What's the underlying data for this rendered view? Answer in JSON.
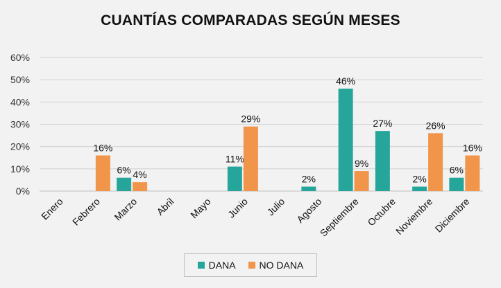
{
  "chart_data": {
    "type": "bar",
    "title": "CUANTÍAS COMPARADAS SEGÚN MESES",
    "categories": [
      "Enero",
      "Febrero",
      "Marzo",
      "Abril",
      "Mayo",
      "Junio",
      "Julio",
      "Agosto",
      "Septiembre",
      "Octubre",
      "Noviembre",
      "Diciembre"
    ],
    "series": [
      {
        "name": "DANA",
        "color": "#26a69a",
        "values": [
          0,
          0,
          6,
          0,
          0,
          11,
          0,
          2,
          46,
          27,
          2,
          6
        ],
        "labels": [
          "",
          "",
          "6%",
          "",
          "",
          "11%",
          "",
          "2%",
          "46%",
          "27%",
          "2%",
          "6%"
        ]
      },
      {
        "name": "NO DANA",
        "color": "#f0954a",
        "values": [
          0,
          16,
          4,
          0,
          0,
          29,
          0,
          0,
          9,
          0,
          26,
          16
        ],
        "labels": [
          "",
          "16%",
          "4%",
          "",
          "",
          "29%",
          "",
          "",
          "9%",
          "",
          "26%",
          "16%"
        ]
      }
    ],
    "ylim": [
      0,
      60
    ],
    "yticks": [
      "0%",
      "10%",
      "20%",
      "30%",
      "40%",
      "50%",
      "60%"
    ],
    "grid": true,
    "legend_position": "bottom"
  }
}
